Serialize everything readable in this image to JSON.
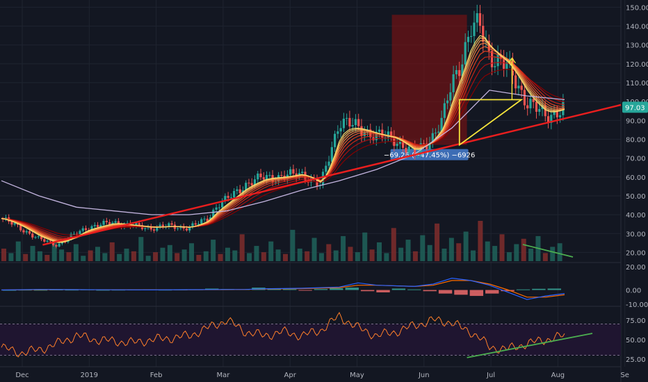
{
  "colors": {
    "background": "#131722",
    "grid": "#1f2430",
    "candle_up": "#26a69a",
    "candle_down": "#ef5350",
    "trendline": "#e81e1e",
    "triangle": "#f5e43b",
    "green_line": "#4caf50",
    "ma": "#c4b5e0",
    "macd": "#2962ff",
    "signal": "#ff6d00",
    "rsi": "#ff7f2a",
    "rsi_band": "#1f1530",
    "price_tag": "#26a69a",
    "measure_box": "#8b1010",
    "measure_label": "#3d6db5"
  },
  "price_tag": "97.03",
  "measure_label": "−69.26 (−47.45%) −6926",
  "macd_zero_label": "0.00",
  "chart_data": [
    {
      "type": "candlestick",
      "x_labels": [
        "Dec",
        "2019",
        "Feb",
        "Mar",
        "Apr",
        "May",
        "Jun",
        "Jul",
        "Aug",
        "Se"
      ],
      "y_ticks": [
        20,
        30,
        40,
        50,
        60,
        70,
        80,
        90,
        100,
        110,
        120,
        130,
        140,
        150
      ],
      "y_tick_labels": [
        "20.00",
        "30.00",
        "40.00",
        "50.00",
        "60.00",
        "70.00",
        "80.00",
        "90.00",
        "100.00",
        "110.00",
        "120.00",
        "130.00",
        "140.00",
        "150.00"
      ],
      "ylim": [
        15,
        152
      ],
      "grid": true,
      "series": [
        {
          "kind": "close_path",
          "x": [
            0,
            10,
            20,
            30,
            40,
            45,
            50,
            60,
            70,
            80,
            90,
            100,
            110,
            115,
            120,
            125,
            130,
            140,
            150,
            160,
            170,
            180,
            190,
            200,
            210,
            220,
            230,
            235,
            240,
            245,
            250,
            255,
            260,
            270,
            280,
            290,
            300
          ],
          "y": [
            38,
            33,
            27,
            24,
            30,
            33,
            34,
            36,
            34,
            33,
            34,
            33,
            38,
            45,
            48,
            52,
            56,
            60,
            60,
            62,
            55,
            90,
            86,
            82,
            80,
            72,
            82,
            90,
            110,
            122,
            138,
            140,
            125,
            118,
            100,
            92,
            97
          ]
        },
        {
          "kind": "moving_average",
          "x": [
            0,
            20,
            40,
            60,
            80,
            100,
            120,
            140,
            160,
            180,
            200,
            220,
            240,
            260,
            280,
            300
          ],
          "y": [
            58,
            50,
            44,
            42,
            40,
            40,
            42,
            47,
            53,
            58,
            64,
            72,
            86,
            106,
            103,
            101
          ]
        },
        {
          "kind": "trendline",
          "points": [
            [
              22,
              24
            ],
            [
              300,
              91
            ]
          ]
        },
        {
          "kind": "triangle",
          "points": [
            [
              244,
              101
            ],
            [
              277,
              101
            ],
            [
              244,
              77
            ]
          ]
        }
      ],
      "volume": [
        14,
        9,
        22,
        8,
        17,
        11,
        7,
        25,
        13,
        10,
        19,
        6,
        12,
        16,
        9,
        21,
        8,
        14,
        11,
        27,
        6,
        10,
        15,
        18,
        9,
        13,
        20,
        7,
        11,
        24,
        8,
        15,
        12,
        30,
        9,
        17,
        10,
        22,
        13,
        8,
        35,
        14,
        11,
        26,
        9,
        19,
        12,
        28,
        16,
        10,
        32,
        13,
        21,
        9,
        37,
        15,
        24,
        11,
        29,
        18,
        42,
        14,
        26,
        20,
        33,
        12,
        45,
        22,
        17,
        30,
        10,
        19,
        25,
        14,
        28,
        9,
        16,
        20
      ],
      "measure": {
        "from": 146,
        "to": 77,
        "x_range": [
          208,
          248
        ],
        "label": "−69.26 (−47.45%) −6926"
      },
      "projection_arrow": {
        "x": 272,
        "from": 101,
        "to": 123
      }
    },
    {
      "type": "line",
      "title": "",
      "y_tick_labels": [
        "20.00",
        "0.00",
        "-10.00"
      ],
      "ylim": [
        -12,
        22
      ],
      "series": [
        {
          "name": "",
          "kind": "macd",
          "x": [
            0,
            20,
            40,
            60,
            80,
            100,
            120,
            130,
            140,
            160,
            180,
            190,
            200,
            220,
            230,
            240,
            250,
            260,
            270,
            280,
            290,
            300
          ],
          "y": [
            0,
            0.5,
            0.3,
            0.2,
            0.1,
            0.3,
            0.4,
            0.5,
            1,
            1.5,
            2.5,
            6,
            4,
            3,
            5,
            10,
            8,
            4,
            -2,
            -8,
            -5,
            -3
          ]
        },
        {
          "name": "",
          "kind": "signal",
          "x": [
            0,
            20,
            40,
            60,
            80,
            100,
            120,
            130,
            140,
            160,
            180,
            190,
            200,
            220,
            230,
            240,
            250,
            260,
            270,
            280,
            290,
            300
          ],
          "y": [
            0,
            0.3,
            0.3,
            0.2,
            0.2,
            0.2,
            0.3,
            0.4,
            0.8,
            1.2,
            2,
            4,
            4,
            3,
            4,
            8,
            8,
            5,
            0,
            -6,
            -6,
            -4
          ]
        }
      ],
      "histogram": [
        0,
        0.2,
        0.1,
        0.3,
        0.2,
        0.4,
        0.1,
        0.2,
        0.3,
        0.5,
        0.2,
        0.3,
        0.5,
        1.2,
        0.8,
        0.6,
        2,
        1.5,
        0.7,
        -0.5,
        0.8,
        1.5,
        2,
        -1,
        -2,
        1.2,
        0.5,
        -1,
        -3,
        -4,
        -5,
        -3,
        -1,
        0.5,
        1,
        1.2
      ]
    },
    {
      "type": "line",
      "title": "",
      "y_tick_labels": [
        "75.00",
        "50.00",
        "25.00"
      ],
      "ylim": [
        18,
        90
      ],
      "bands": [
        70,
        30
      ],
      "series": [
        {
          "name": "",
          "kind": "rsi",
          "x": [
            0,
            10,
            20,
            30,
            40,
            50,
            60,
            70,
            80,
            90,
            100,
            110,
            120,
            130,
            140,
            150,
            160,
            170,
            180,
            190,
            200,
            210,
            220,
            230,
            240,
            245,
            250,
            255,
            260,
            270,
            280,
            290,
            300
          ],
          "y": [
            40,
            33,
            37,
            45,
            55,
            50,
            48,
            46,
            50,
            52,
            55,
            65,
            75,
            60,
            55,
            60,
            55,
            62,
            80,
            65,
            55,
            60,
            68,
            75,
            72,
            65,
            60,
            52,
            40,
            38,
            45,
            50,
            55
          ]
        },
        {
          "name": "",
          "kind": "divergence",
          "x": [
            248,
            300
          ],
          "y": [
            27,
            58
          ]
        }
      ]
    }
  ]
}
